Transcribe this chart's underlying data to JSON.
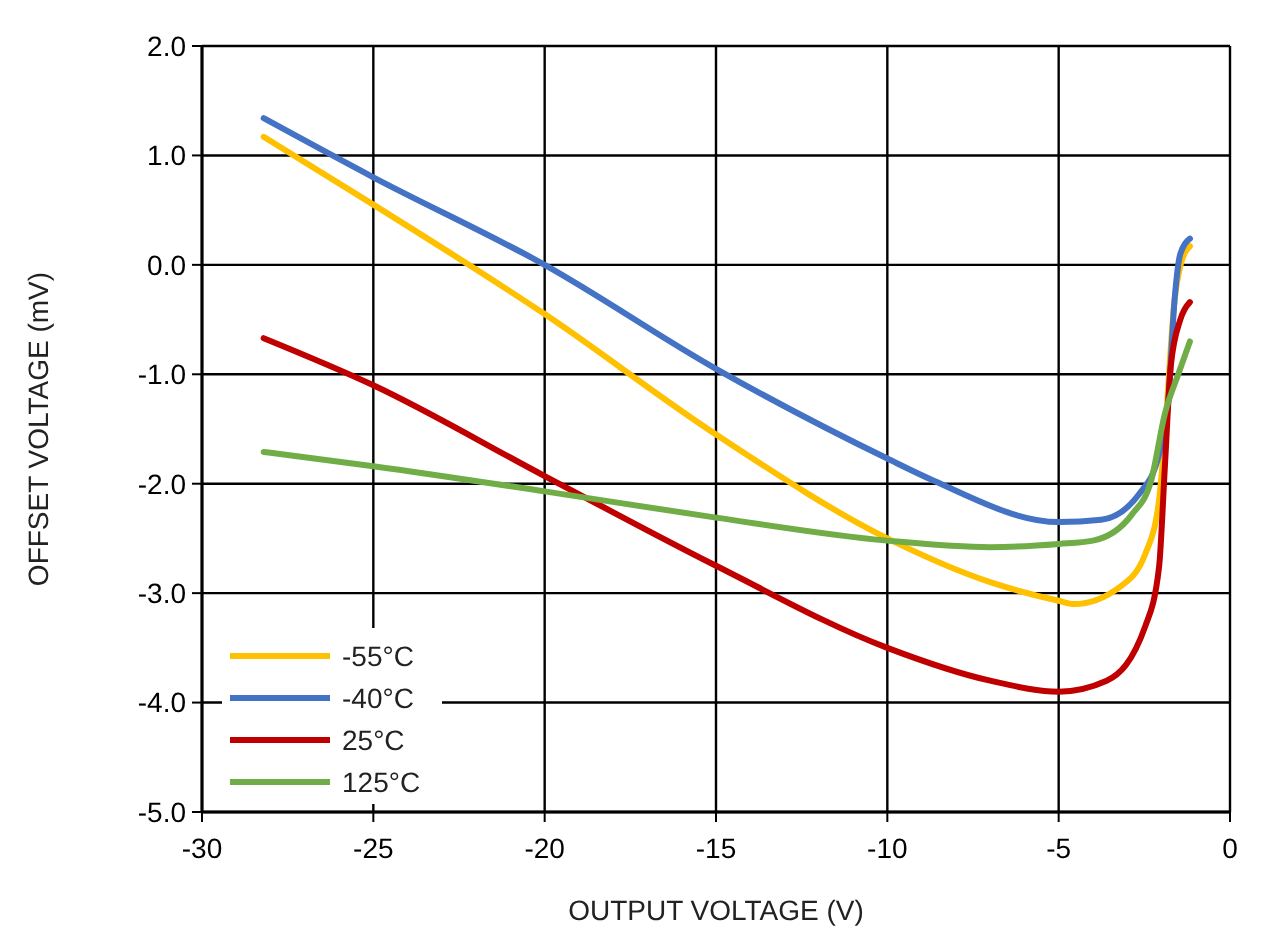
{
  "chart_data": {
    "type": "line",
    "xlabel": "OUTPUT VOLTAGE (V)",
    "ylabel": "OFFSET VOLTAGE (mV)",
    "xlim": [
      -30,
      0
    ],
    "xticks": [
      -30,
      -25,
      -20,
      -15,
      -10,
      -5,
      0
    ],
    "ylim": [
      -5,
      2
    ],
    "yticks": [
      {
        "value": -5,
        "label": "-5.0"
      },
      {
        "value": -4,
        "label": "-4.0"
      },
      {
        "value": -3,
        "label": "-3.0"
      },
      {
        "value": -2,
        "label": "-2.0"
      },
      {
        "value": -1,
        "label": "-1.0"
      },
      {
        "value": 0,
        "label": "0.0"
      },
      {
        "value": 1,
        "label": "1.0"
      },
      {
        "value": 2,
        "label": "2.0"
      }
    ],
    "grid": true,
    "legend": "bottom left",
    "marker": "none",
    "line_style": "solid",
    "series": [
      {
        "name": "-55°C",
        "color": "#ffc000",
        "x": [
          -28.2,
          -25,
          -20,
          -15,
          -10,
          -7,
          -5,
          -4.55,
          -3.2,
          -2.47,
          -2.07,
          -1.9,
          -1.62,
          -1.45,
          -1.17
        ],
        "values": [
          1.17,
          0.55,
          -0.45,
          -1.55,
          -2.5,
          -2.9,
          -3.07,
          -3.1,
          -2.94,
          -2.64,
          -2.15,
          -1.55,
          -0.33,
          -0.01,
          0.17
        ]
      },
      {
        "name": "-40°C",
        "color": "#4472c4",
        "x": [
          -28.2,
          -25,
          -20,
          -15,
          -10,
          -8.66,
          -5,
          -3.76,
          -2.64,
          -2.07,
          -1.8,
          -1.62,
          -1.45,
          -1.17
        ],
        "values": [
          1.34,
          0.8,
          0.0,
          -0.95,
          -1.77,
          -1.97,
          -2.35,
          -2.33,
          -2.09,
          -1.73,
          -1.24,
          -0.33,
          0.1,
          0.24
        ]
      },
      {
        "name": "25°C",
        "color": "#c00000",
        "x": [
          -28.2,
          -25,
          -20,
          -15,
          -10,
          -7,
          -5,
          -3.6,
          -2.47,
          -2.07,
          -1.9,
          -1.73,
          -1.45,
          -1.17
        ],
        "values": [
          -0.67,
          -1.1,
          -1.93,
          -2.75,
          -3.5,
          -3.8,
          -3.9,
          -3.8,
          -3.3,
          -2.76,
          -1.84,
          -0.93,
          -0.5,
          -0.34
        ]
      },
      {
        "name": "125°C",
        "color": "#70ad47",
        "x": [
          -28.2,
          -25,
          -20,
          -15,
          -10,
          -7,
          -5,
          -4,
          -2.86,
          -2.3,
          -1.9,
          -1.5,
          -1.17
        ],
        "values": [
          -1.71,
          -1.84,
          -2.07,
          -2.31,
          -2.52,
          -2.58,
          -2.55,
          -2.52,
          -2.28,
          -1.97,
          -1.36,
          -0.99,
          -0.7
        ]
      }
    ]
  }
}
